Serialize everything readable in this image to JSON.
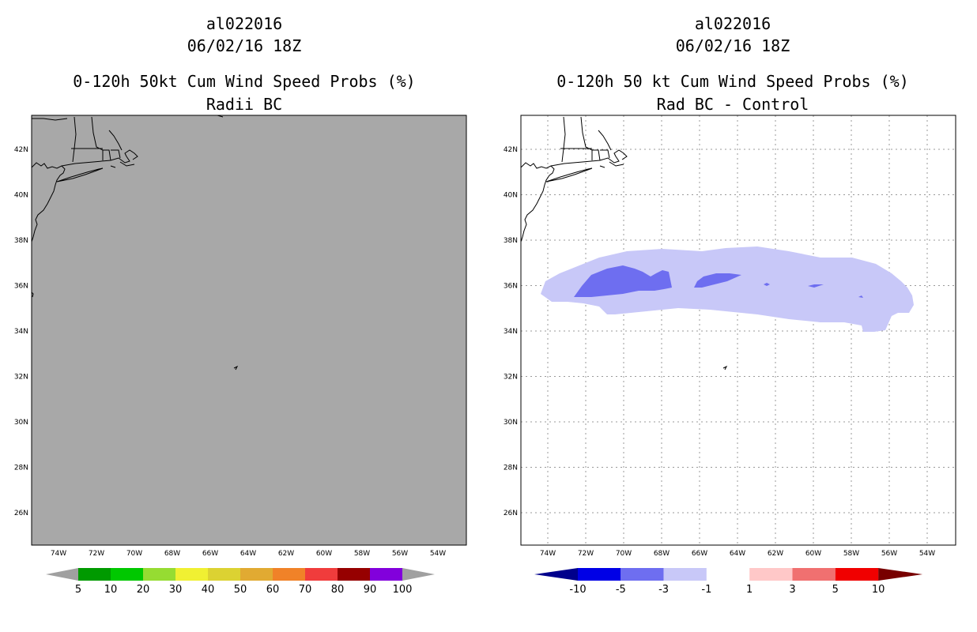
{
  "left_panel": {
    "storm_id": "al022016",
    "datetime": "06/02/16 18Z",
    "title": "0-120h 50kt Cum Wind Speed Probs (%)",
    "subtitle": "Radii BC",
    "background_color": "#a8a8a8",
    "lat_labels": [
      "42N",
      "40N",
      "38N",
      "36N",
      "34N",
      "32N",
      "30N",
      "28N",
      "26N"
    ],
    "lon_labels": [
      "74W",
      "72W",
      "70W",
      "68W",
      "66W",
      "64W",
      "62W",
      "60W",
      "58W",
      "56W",
      "54W"
    ],
    "colorbar": {
      "colors": [
        "#009a00",
        "#00c800",
        "#96dc32",
        "#f0f032",
        "#dcd232",
        "#e1aa32",
        "#f08228",
        "#f03c3c",
        "#960000",
        "#8200dc"
      ],
      "end_color": "#a0a0a0",
      "labels": [
        "5",
        "10",
        "20",
        "30",
        "40",
        "50",
        "60",
        "70",
        "80",
        "90",
        "100"
      ]
    }
  },
  "right_panel": {
    "storm_id": "al022016",
    "datetime": "06/02/16 18Z",
    "title": "0-120h 50 kt Cum Wind Speed Probs (%)",
    "subtitle": "Rad BC - Control",
    "background_color": "#ffffff",
    "lat_labels": [
      "42N",
      "40N",
      "38N",
      "36N",
      "34N",
      "32N",
      "30N",
      "28N",
      "26N"
    ],
    "lon_labels": [
      "74W",
      "72W",
      "70W",
      "68W",
      "66W",
      "64W",
      "62W",
      "60W",
      "58W",
      "56W",
      "54W"
    ],
    "contour_colors": {
      "minus1_to_minus3": "#c8c8f8",
      "minus3_to_minus5": "#6e6ef0"
    },
    "colorbar": {
      "colors": [
        "#0000e6",
        "#6e6ef0",
        "#c8c8f8",
        "#ffffff",
        "#ffc8c8",
        "#f07070",
        "#f00000"
      ],
      "low_end_color": "#00008c",
      "high_end_color": "#780000",
      "labels": [
        "-10",
        "-5",
        "-3",
        "-1",
        "1",
        "3",
        "5",
        "10"
      ]
    }
  }
}
